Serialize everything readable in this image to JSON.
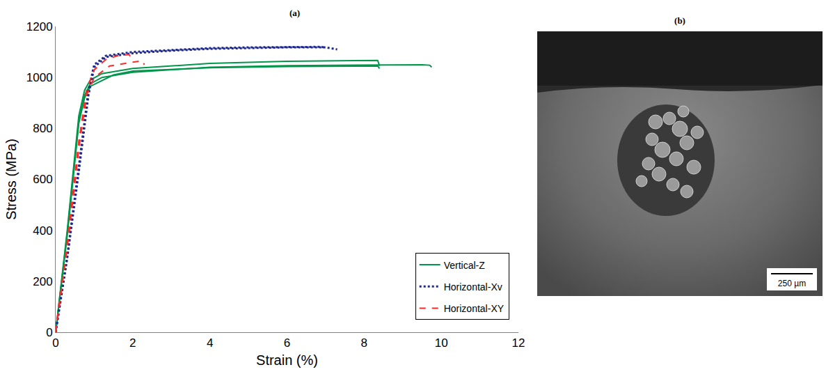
{
  "chart_data": {
    "type": "line",
    "title": "(a)",
    "x_label": "Strain (%)",
    "y_label": "Stress (MPa)",
    "xlim": [
      0,
      12
    ],
    "xticks": [
      0,
      2,
      4,
      6,
      8,
      10,
      12
    ],
    "ylim": [
      0,
      1200
    ],
    "yticks": [
      0,
      200,
      400,
      600,
      800,
      1000,
      1200
    ],
    "grid": false,
    "legend": "bottom right",
    "series": [
      {
        "name": "Vertical-Z",
        "color": "#00964b",
        "line_style": "solid",
        "x": [
          0,
          0.3,
          0.6,
          0.75,
          0.9,
          1.2,
          2,
          4,
          6,
          8,
          8.35,
          8.4
        ],
        "values": [
          0,
          400,
          850,
          950,
          990,
          1015,
          1035,
          1055,
          1063,
          1066,
          1067,
          1045
        ]
      },
      {
        "name": "Vertical-Z",
        "color": "#00964b",
        "line_style": "solid",
        "x": [
          0,
          0.3,
          0.6,
          0.75,
          0.9,
          1.2,
          2,
          4,
          6,
          8,
          9.5,
          9.7,
          9.75
        ],
        "values": [
          0,
          390,
          830,
          930,
          975,
          1000,
          1020,
          1040,
          1046,
          1049,
          1050,
          1048,
          1040
        ]
      },
      {
        "name": "Vertical-Z",
        "color": "#00964b",
        "line_style": "solid",
        "x": [
          0,
          0.3,
          0.6,
          0.75,
          0.9,
          1.5,
          2,
          4,
          6,
          8,
          8.35,
          8.4
        ],
        "values": [
          0,
          380,
          820,
          920,
          965,
          1010,
          1025,
          1038,
          1043,
          1045,
          1045,
          1035
        ]
      },
      {
        "name": "Horizontal-Xv",
        "color": "#1f2a8c",
        "line_style": "dotted",
        "x": [
          0,
          0.3,
          0.6,
          0.85,
          1.0,
          1.3,
          2,
          3,
          4,
          5,
          6,
          6.9,
          7.0
        ],
        "values": [
          0,
          300,
          650,
          950,
          1050,
          1085,
          1100,
          1108,
          1115,
          1118,
          1120,
          1120,
          1115
        ]
      },
      {
        "name": "Horizontal-Xv",
        "color": "#1f2a8c",
        "line_style": "dotted",
        "x": [
          0,
          0.3,
          0.6,
          0.85,
          1.0,
          1.3,
          2,
          3,
          4,
          5,
          6,
          7,
          7.3
        ],
        "values": [
          0,
          290,
          630,
          930,
          1040,
          1080,
          1095,
          1105,
          1112,
          1116,
          1118,
          1118,
          1110
        ]
      },
      {
        "name": "Horizontal-XY",
        "color": "#ff2a2a",
        "line_style": "dashed",
        "x": [
          0,
          0.3,
          0.6,
          0.8,
          1.0,
          1.3,
          1.6,
          1.9,
          1.95
        ],
        "values": [
          0,
          350,
          750,
          950,
          1030,
          1070,
          1085,
          1090,
          1080
        ]
      },
      {
        "name": "Horizontal-XY",
        "color": "#ff2a2a",
        "line_style": "dashed",
        "x": [
          0,
          0.3,
          0.6,
          0.8,
          1.0,
          1.4,
          2.0,
          2.25,
          2.3
        ],
        "values": [
          0,
          330,
          720,
          930,
          1000,
          1045,
          1060,
          1065,
          1050
        ]
      }
    ]
  },
  "panel_b": {
    "label": "(b)",
    "scale_bar": "250 µm"
  }
}
